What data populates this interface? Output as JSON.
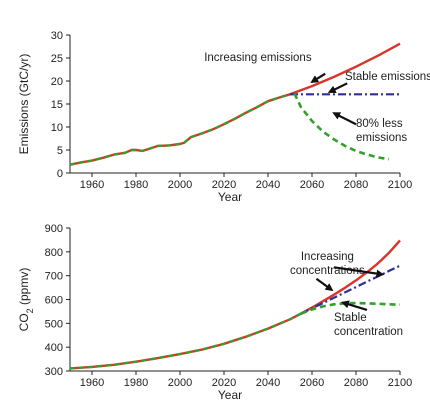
{
  "colors": {
    "increasing": "#d9352a",
    "stable": "#2f2f9a",
    "reduced": "#33a02c",
    "arrow": "#111111"
  },
  "chart_data": [
    {
      "type": "line",
      "xlabel": "Year",
      "ylabel": "Emissions (GtC/yr)",
      "xlim": [
        1950,
        2100
      ],
      "ylim": [
        0,
        30
      ],
      "xticks": [
        1960,
        1980,
        2000,
        2020,
        2040,
        2060,
        2080,
        2100
      ],
      "yticks": [
        0,
        5,
        10,
        15,
        20,
        25,
        30
      ],
      "series": [
        {
          "key": "history",
          "style": "dashed-red-green",
          "x": [
            1950,
            1955,
            1960,
            1965,
            1970,
            1975,
            1978,
            1980,
            1983,
            1985,
            1990,
            1995,
            2000,
            2002,
            2005,
            2010,
            2015,
            2020,
            2025,
            2030,
            2035,
            2040,
            2045,
            2050,
            2052
          ],
          "y": [
            1.8,
            2.3,
            2.7,
            3.3,
            4.0,
            4.4,
            5.0,
            5.0,
            4.8,
            5.1,
            5.9,
            6.0,
            6.3,
            6.6,
            7.8,
            8.6,
            9.5,
            10.6,
            11.8,
            13.1,
            14.3,
            15.6,
            16.4,
            17.1,
            17.3
          ]
        },
        {
          "key": "increasing",
          "style": "solid",
          "x": [
            2050,
            2060,
            2070,
            2080,
            2090,
            2100
          ],
          "y": [
            17.1,
            18.9,
            20.9,
            23.1,
            25.5,
            28.1
          ]
        },
        {
          "key": "stable",
          "style": "dash-dot",
          "x": [
            2050,
            2100
          ],
          "y": [
            17.1,
            17.1
          ]
        },
        {
          "key": "reduced",
          "style": "dashed",
          "x": [
            2052,
            2055,
            2060,
            2065,
            2070,
            2075,
            2080,
            2085,
            2090,
            2095
          ],
          "y": [
            17.3,
            14.3,
            11.3,
            9.0,
            7.3,
            5.9,
            4.8,
            4.0,
            3.4,
            3.0
          ]
        }
      ],
      "annotations": [
        {
          "text": "Increasing emissions",
          "lines": [
            "Increasing emissions"
          ],
          "x": 2011,
          "y": 24.4,
          "anchor": "start",
          "arrow": [
            2066,
            21.6,
            2060,
            19.8
          ]
        },
        {
          "text": "Stable emissions",
          "lines": [
            "Stable emissions"
          ],
          "x": 2075,
          "y": 20.2,
          "anchor": "start",
          "arrow": [
            2076,
            19.5,
            2068,
            17.6
          ]
        },
        {
          "text": "80% less emissions",
          "lines": [
            "80% less",
            "emissions"
          ],
          "x": 2080,
          "y": 10.0,
          "anchor": "start",
          "arrow": [
            2080,
            10.6,
            2070,
            13.0
          ]
        }
      ]
    },
    {
      "type": "line",
      "xlabel": "Year",
      "ylabel": "CO2 (ppmv)",
      "xlim": [
        1950,
        2100
      ],
      "ylim": [
        300,
        900
      ],
      "xticks": [
        1960,
        1980,
        2000,
        2020,
        2040,
        2060,
        2080,
        2100
      ],
      "yticks": [
        300,
        400,
        500,
        600,
        700,
        800,
        900
      ],
      "series": [
        {
          "key": "history",
          "style": "dashed-red-green",
          "x": [
            1950,
            1960,
            1970,
            1980,
            1990,
            2000,
            2010,
            2020,
            2030,
            2040,
            2050,
            2055
          ],
          "y": [
            311,
            317,
            326,
            339,
            354,
            371,
            390,
            414,
            444,
            478,
            517,
            541
          ]
        },
        {
          "key": "increasing",
          "style": "solid",
          "x": [
            2055,
            2060,
            2065,
            2070,
            2075,
            2080,
            2085,
            2090,
            2095,
            2100
          ],
          "y": [
            541,
            566,
            593,
            620,
            649,
            680,
            714,
            752,
            796,
            848
          ]
        },
        {
          "key": "stable",
          "style": "dash-dot",
          "x": [
            2055,
            2060,
            2065,
            2070,
            2075,
            2080,
            2085,
            2090,
            2095,
            2100
          ],
          "y": [
            541,
            563,
            585,
            607,
            630,
            652,
            675,
            697,
            720,
            742
          ]
        },
        {
          "key": "reduced",
          "style": "dashed",
          "x": [
            2055,
            2060,
            2065,
            2070,
            2075,
            2080,
            2085,
            2090,
            2095,
            2100
          ],
          "y": [
            541,
            558,
            571,
            580,
            584,
            585,
            584,
            582,
            580,
            578
          ]
        }
      ],
      "annotations": [
        {
          "text": "Increasing concentrations",
          "lines": [
            "Increasing",
            "concentrations"
          ],
          "x": 2067,
          "y": 766,
          "anchor": "middle",
          "arrow": [
            2062,
            687,
            2069,
            640
          ]
        },
        {
          "text": "",
          "lines": [],
          "x": 2095,
          "y": 740,
          "anchor": "start",
          "arrow": [
            2070,
            735,
            2092,
            705
          ]
        },
        {
          "text": "Stable concentration",
          "lines": [
            "Stable",
            "concentration"
          ],
          "x": 2070,
          "y": 510,
          "anchor": "start",
          "arrow": [
            2085,
            556,
            2074,
            587
          ]
        }
      ]
    }
  ]
}
